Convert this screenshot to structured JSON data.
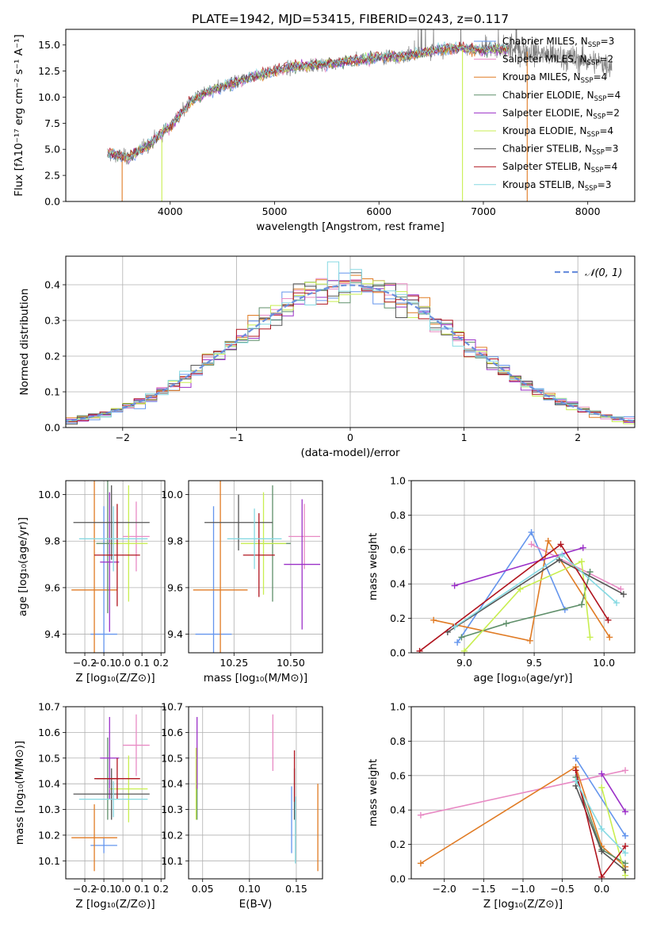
{
  "colors": {
    "chabrier_miles": "#6495ed",
    "salpeter_miles": "#e88ac4",
    "kroupa_miles": "#e07b24",
    "chabrier_elodie": "#5f8f6a",
    "salpeter_elodie": "#9b30c8",
    "kroupa_elodie": "#c8ee50",
    "chabrier_stelib": "#555555",
    "salpeter_stelib": "#b0141e",
    "kroupa_stelib": "#86d9e2",
    "normal_curve": "#6b8fdd",
    "grid": "#b0b0b0"
  },
  "chart_data": [
    {
      "id": "spectrum",
      "type": "line",
      "title": "PLATE=1942, MJD=53415, FIBERID=0243, z=0.117",
      "xlabel": "wavelength [Angstrom, rest frame]",
      "ylabel": "Flux [fλ10⁻¹⁷ erg cm⁻² s⁻¹ A⁻¹]",
      "xlim": [
        3000,
        8450
      ],
      "ylim": [
        0,
        16.5
      ],
      "xticks": [
        4000,
        5000,
        6000,
        7000,
        8000
      ],
      "yticks": [
        0.0,
        2.5,
        5.0,
        7.5,
        10.0,
        12.5,
        15.0
      ],
      "grid": false,
      "legend_position": "right",
      "data_envelope": {
        "x": [
          3400,
          3600,
          3800,
          4000,
          4200,
          4400,
          4600,
          4800,
          5000,
          5200,
          5400,
          5600,
          5800,
          6000,
          6200,
          6400,
          6600,
          6800,
          7000,
          7200,
          7400,
          7600,
          7800,
          8000,
          8200
        ],
        "y": [
          4.6,
          4.2,
          5.5,
          7.2,
          9.6,
          10.7,
          11.3,
          12.0,
          12.5,
          12.9,
          13.1,
          13.3,
          13.6,
          13.8,
          13.9,
          14.2,
          14.6,
          14.7,
          14.5,
          14.6,
          14.4,
          14.1,
          13.8,
          13.5,
          13.1
        ]
      },
      "legend": [
        {
          "label": "Chabrier MILES, N",
          "sub": "SSP",
          "tail": "=3",
          "color_key": "chabrier_miles"
        },
        {
          "label": "Salpeter MILES, N",
          "sub": "SSP",
          "tail": "=2",
          "color_key": "salpeter_miles"
        },
        {
          "label": "Kroupa MILES, N",
          "sub": "SSP",
          "tail": "=4",
          "color_key": "kroupa_miles"
        },
        {
          "label": "Chabrier ELODIE, N",
          "sub": "SSP",
          "tail": "=4",
          "color_key": "chabrier_elodie"
        },
        {
          "label": "Salpeter ELODIE, N",
          "sub": "SSP",
          "tail": "=2",
          "color_key": "salpeter_elodie"
        },
        {
          "label": "Kroupa ELODIE, N",
          "sub": "SSP",
          "tail": "=4",
          "color_key": "kroupa_elodie"
        },
        {
          "label": "Chabrier STELIB, N",
          "sub": "SSP",
          "tail": "=3",
          "color_key": "chabrier_stelib"
        },
        {
          "label": "Salpeter STELIB, N",
          "sub": "SSP",
          "tail": "=4",
          "color_key": "salpeter_stelib"
        },
        {
          "label": "Kroupa STELIB, N",
          "sub": "SSP",
          "tail": "=3",
          "color_key": "kroupa_stelib"
        }
      ]
    },
    {
      "id": "residuals",
      "type": "line",
      "xlabel": "(data-model)/error",
      "ylabel": "Normed distribution",
      "xlim": [
        -2.5,
        2.5
      ],
      "ylim": [
        0,
        0.48
      ],
      "xticks": [
        -2,
        -1,
        0,
        1,
        2
      ],
      "yticks": [
        0.0,
        0.1,
        0.2,
        0.3,
        0.4
      ],
      "grid": true,
      "legend_position": "top-right",
      "legend_label": "𝒩(0, 1)",
      "bin_width": 0.1
    },
    {
      "id": "age_vs_z",
      "type": "scatter",
      "xlabel": "Z [log₁₀(Z/Z⊙)]",
      "ylabel": "age  [log₁₀(age/yr)]",
      "xlim": [
        -0.3,
        0.22
      ],
      "ylim": [
        9.32,
        10.06
      ],
      "xticks": [
        -0.2,
        -0.1,
        0.0,
        0.1,
        0.2
      ],
      "yticks": [
        9.4,
        9.6,
        9.8,
        10.0
      ],
      "grid": true,
      "points": [
        {
          "series": "chabrier_miles",
          "x": -0.1,
          "xerr": 0.07,
          "y": 9.4,
          "yerr": 0.55
        },
        {
          "series": "salpeter_miles",
          "x": 0.07,
          "xerr": 0.07,
          "y": 9.82,
          "yerr": 0.15
        },
        {
          "series": "kroupa_miles",
          "x": -0.15,
          "xerr": 0.12,
          "y": 9.59,
          "yerr": 0.55
        },
        {
          "series": "chabrier_elodie",
          "x": -0.08,
          "xerr": 0.06,
          "y": 9.79,
          "yerr": 0.3
        },
        {
          "series": "salpeter_elodie",
          "x": -0.07,
          "xerr": 0.05,
          "y": 9.71,
          "yerr": 0.3
        },
        {
          "series": "kroupa_elodie",
          "x": 0.03,
          "xerr": 0.1,
          "y": 9.79,
          "yerr": 0.25
        },
        {
          "series": "chabrier_stelib",
          "x": -0.06,
          "xerr": 0.2,
          "y": 9.88,
          "yerr": 0.16
        },
        {
          "series": "salpeter_stelib",
          "x": -0.03,
          "xerr": 0.12,
          "y": 9.74,
          "yerr": 0.22
        },
        {
          "series": "kroupa_stelib",
          "x": -0.05,
          "xerr": 0.18,
          "y": 9.81,
          "yerr": 0.14
        }
      ]
    },
    {
      "id": "age_vs_mass",
      "type": "scatter",
      "xlabel": "mass [log₁₀(M/M⊙)]",
      "ylabel": "",
      "xlim": [
        10.05,
        10.64
      ],
      "ylim": [
        9.32,
        10.06
      ],
      "xticks": [
        10.25,
        10.5
      ],
      "xticklabels": [
        "10.25",
        "10.50"
      ],
      "yticks": [
        9.4,
        9.6,
        9.8,
        10.0
      ],
      "grid": true,
      "points": [
        {
          "series": "chabrier_miles",
          "x": 10.16,
          "xerr": 0.08,
          "y": 9.4,
          "yerr": 0.55
        },
        {
          "series": "salpeter_miles",
          "x": 10.56,
          "xerr": 0.07,
          "y": 9.82,
          "yerr": 0.14
        },
        {
          "series": "kroupa_miles",
          "x": 10.19,
          "xerr": 0.12,
          "y": 9.59,
          "yerr": 0.55
        },
        {
          "series": "chabrier_elodie",
          "x": 10.42,
          "xerr": 0.08,
          "y": 9.79,
          "yerr": 0.25
        },
        {
          "series": "salpeter_elodie",
          "x": 10.55,
          "xerr": 0.08,
          "y": 9.7,
          "yerr": 0.28
        },
        {
          "series": "kroupa_elodie",
          "x": 10.38,
          "xerr": 0.1,
          "y": 9.79,
          "yerr": 0.22
        },
        {
          "series": "chabrier_stelib",
          "x": 10.27,
          "xerr": 0.15,
          "y": 9.88,
          "yerr": 0.12
        },
        {
          "series": "salpeter_stelib",
          "x": 10.36,
          "xerr": 0.07,
          "y": 9.74,
          "yerr": 0.18
        },
        {
          "series": "kroupa_stelib",
          "x": 10.34,
          "xerr": 0.12,
          "y": 9.81,
          "yerr": 0.13
        }
      ]
    },
    {
      "id": "massweight_vs_age",
      "type": "line",
      "xlabel": "age  [log₁₀(age/yr)]",
      "ylabel": "mass weight",
      "xlim": [
        8.62,
        10.22
      ],
      "ylim": [
        0,
        1.0
      ],
      "xticks": [
        9.0,
        9.5,
        10.0
      ],
      "yticks": [
        0.0,
        0.2,
        0.4,
        0.6,
        0.8,
        1.0
      ],
      "grid": true,
      "series": [
        {
          "name": "chabrier_miles",
          "x": [
            8.95,
            9.48,
            9.72
          ],
          "y": [
            0.06,
            0.7,
            0.25
          ]
        },
        {
          "name": "salpeter_miles",
          "x": [
            9.48,
            10.12
          ],
          "y": [
            0.63,
            0.37
          ]
        },
        {
          "name": "kroupa_miles",
          "x": [
            8.78,
            9.47,
            9.6,
            10.04
          ],
          "y": [
            0.19,
            0.07,
            0.65,
            0.09
          ]
        },
        {
          "name": "chabrier_elodie",
          "x": [
            8.98,
            9.3,
            9.84,
            9.9
          ],
          "y": [
            0.09,
            0.17,
            0.28,
            0.47
          ]
        },
        {
          "name": "salpeter_elodie",
          "x": [
            8.93,
            9.85
          ],
          "y": [
            0.39,
            0.61
          ]
        },
        {
          "name": "kroupa_elodie",
          "x": [
            9.0,
            9.4,
            9.84,
            9.9
          ],
          "y": [
            0.01,
            0.37,
            0.53,
            0.09
          ]
        },
        {
          "name": "chabrier_stelib",
          "x": [
            8.88,
            9.68,
            10.14
          ],
          "y": [
            0.12,
            0.54,
            0.34
          ]
        },
        {
          "name": "salpeter_stelib",
          "x": [
            8.68,
            9.69,
            10.03
          ],
          "y": [
            0.01,
            0.63,
            0.19
          ]
        },
        {
          "name": "kroupa_stelib",
          "x": [
            8.93,
            9.7,
            10.09
          ],
          "y": [
            0.15,
            0.57,
            0.29
          ]
        }
      ]
    },
    {
      "id": "mass_vs_z",
      "type": "scatter",
      "xlabel": "Z [log₁₀(Z/Z⊙)]",
      "ylabel": "mass [log₁₀(M/M⊙)]",
      "xlim": [
        -0.3,
        0.22
      ],
      "ylim": [
        10.03,
        10.7
      ],
      "xticks": [
        -0.2,
        -0.1,
        0.0,
        0.1,
        0.2
      ],
      "yticks": [
        10.1,
        10.2,
        10.3,
        10.4,
        10.5,
        10.6,
        10.7
      ],
      "grid": true,
      "points": [
        {
          "series": "chabrier_miles",
          "x": -0.1,
          "xerr": 0.07,
          "y": 10.16,
          "yerr": 0.03
        },
        {
          "series": "salpeter_miles",
          "x": 0.07,
          "xerr": 0.07,
          "y": 10.55,
          "yerr": 0.12
        },
        {
          "series": "kroupa_miles",
          "x": -0.15,
          "xerr": 0.12,
          "y": 10.19,
          "yerr": 0.13
        },
        {
          "series": "chabrier_elodie",
          "x": -0.08,
          "xerr": 0.06,
          "y": 10.42,
          "yerr": 0.16
        },
        {
          "series": "salpeter_elodie",
          "x": -0.07,
          "xerr": 0.05,
          "y": 10.5,
          "yerr": 0.16
        },
        {
          "series": "kroupa_elodie",
          "x": 0.03,
          "xerr": 0.1,
          "y": 10.38,
          "yerr": 0.13
        },
        {
          "series": "chabrier_stelib",
          "x": -0.06,
          "xerr": 0.2,
          "y": 10.36,
          "yerr": 0.1
        },
        {
          "series": "salpeter_stelib",
          "x": -0.03,
          "xerr": 0.12,
          "y": 10.42,
          "yerr": 0.08
        },
        {
          "series": "kroupa_stelib",
          "x": -0.05,
          "xerr": 0.18,
          "y": 10.34,
          "yerr": 0.07
        }
      ]
    },
    {
      "id": "mass_vs_ebv",
      "type": "scatter",
      "xlabel": "E(B-V)",
      "ylabel": "",
      "xlim": [
        0.035,
        0.178
      ],
      "ylim": [
        10.03,
        10.7
      ],
      "xticks": [
        0.05,
        0.1,
        0.15
      ],
      "xticklabels": [
        "0.05",
        "0.10",
        "0.15"
      ],
      "yticks": [
        10.1,
        10.2,
        10.3,
        10.4,
        10.5,
        10.6,
        10.7
      ],
      "grid": true,
      "points": [
        {
          "series": "chabrier_miles",
          "x": 0.145,
          "y": 10.26,
          "yerr": 0.13
        },
        {
          "series": "salpeter_miles",
          "x": 0.125,
          "y": 10.56,
          "yerr": 0.11
        },
        {
          "series": "kroupa_miles",
          "x": 0.173,
          "y": 10.23,
          "yerr": 0.17
        },
        {
          "series": "chabrier_elodie",
          "x": 0.044,
          "y": 10.4,
          "yerr": 0.14
        },
        {
          "series": "salpeter_elodie",
          "x": 0.044,
          "y": 10.52,
          "yerr": 0.14
        },
        {
          "series": "kroupa_elodie",
          "x": 0.043,
          "y": 10.4,
          "yerr": 0.14
        },
        {
          "series": "chabrier_stelib",
          "x": 0.148,
          "y": 10.36,
          "yerr": 0.1
        },
        {
          "series": "salpeter_stelib",
          "x": 0.148,
          "y": 10.43,
          "yerr": 0.1
        },
        {
          "series": "kroupa_stelib",
          "x": 0.149,
          "y": 10.22,
          "yerr": 0.13
        }
      ]
    },
    {
      "id": "massweight_vs_z",
      "type": "line",
      "xlabel": "Z [log₁₀(Z/Z⊙)]",
      "ylabel": "mass weight",
      "xlim": [
        -2.42,
        0.42
      ],
      "ylim": [
        0,
        1.0
      ],
      "xticks": [
        -2.0,
        -1.5,
        -1.0,
        -0.5,
        0.0
      ],
      "yticks": [
        0.0,
        0.2,
        0.4,
        0.6,
        0.8,
        1.0
      ],
      "grid": true,
      "series": [
        {
          "name": "chabrier_miles",
          "x": [
            -0.33,
            0.3
          ],
          "y": [
            0.7,
            0.25
          ]
        },
        {
          "name": "salpeter_miles",
          "x": [
            -2.3,
            0.3
          ],
          "y": [
            0.37,
            0.63
          ]
        },
        {
          "name": "kroupa_miles",
          "x": [
            -2.3,
            -0.33,
            0.0,
            0.3
          ],
          "y": [
            0.09,
            0.65,
            0.19,
            0.07
          ]
        },
        {
          "name": "chabrier_elodie",
          "x": [
            -0.33,
            0.0,
            0.3
          ],
          "y": [
            0.59,
            0.17,
            0.09
          ]
        },
        {
          "name": "salpeter_elodie",
          "x": [
            0.0,
            0.3
          ],
          "y": [
            0.61,
            0.39
          ]
        },
        {
          "name": "kroupa_elodie",
          "x": [
            0.0,
            0.3
          ],
          "y": [
            0.53,
            0.02
          ]
        },
        {
          "name": "chabrier_stelib",
          "x": [
            -0.33,
            0.0,
            0.3
          ],
          "y": [
            0.54,
            0.16,
            0.05
          ]
        },
        {
          "name": "salpeter_stelib",
          "x": [
            -0.33,
            0.0,
            0.3
          ],
          "y": [
            0.63,
            0.01,
            0.19
          ]
        },
        {
          "name": "kroupa_stelib",
          "x": [
            -0.33,
            0.0,
            0.3
          ],
          "y": [
            0.57,
            0.29,
            0.15
          ]
        }
      ]
    }
  ]
}
